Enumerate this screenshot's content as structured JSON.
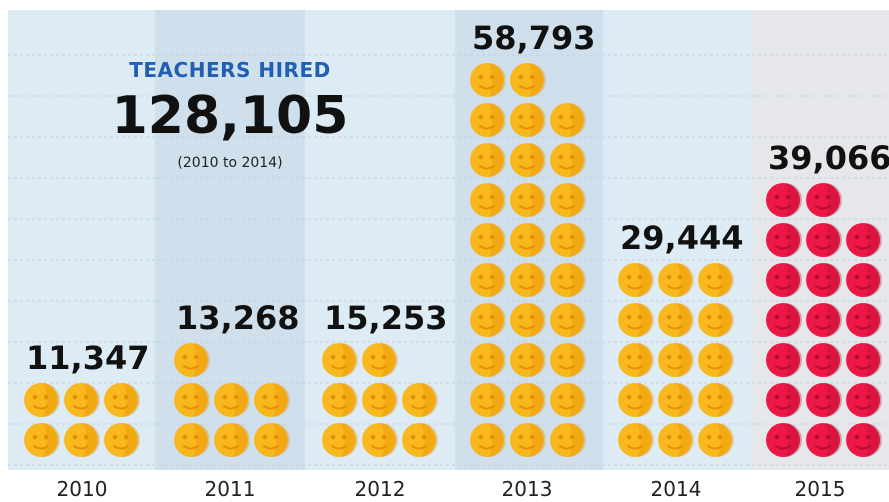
{
  "header": {
    "label": "TEACHERS HIRED",
    "total": "128,105",
    "range": "(2010 to 2014)"
  },
  "chart_data": {
    "type": "bar",
    "title": "TEACHERS HIRED",
    "categories": [
      "2010",
      "2011",
      "2012",
      "2013",
      "2014",
      "2015"
    ],
    "values": [
      11347,
      13268,
      15253,
      58793,
      29444,
      39066
    ],
    "value_labels": [
      "11,347",
      "13,268",
      "15,253",
      "58,793",
      "29,444",
      "39,066"
    ],
    "icon_counts": [
      6,
      7,
      8,
      29,
      15,
      20
    ],
    "highlight_category": "2015",
    "highlight_marker": "*",
    "grid": true,
    "colors": {
      "icon": "#f9b81d",
      "icon_dark": "#e58f06",
      "icon_highlight": "#ee1846",
      "icon_highlight_dark": "#b50e30",
      "band_light": "#dcebf4",
      "band_dark": "#cfe0ec",
      "band_highlight": "#e6e7ea",
      "asterisk": "#e8193f",
      "label_text": "#111111",
      "grid": "#c1d2df"
    }
  }
}
